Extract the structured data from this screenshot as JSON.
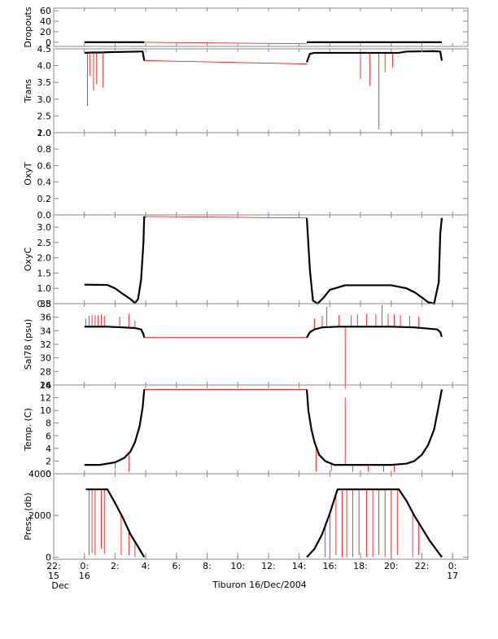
{
  "chart_data": {
    "type": "line",
    "title": "",
    "xlabel": "Tiburon 16/Dec/2004",
    "x_unit": "hours",
    "xlim": [
      -2,
      25
    ],
    "x_ticks": [
      {
        "value": -2,
        "label": "22:",
        "sublabel1": "15",
        "sublabel2": "Dec"
      },
      {
        "value": 0,
        "label": "0:",
        "sublabel1": "16"
      },
      {
        "value": 2,
        "label": "2:"
      },
      {
        "value": 4,
        "label": "4:"
      },
      {
        "value": 6,
        "label": "6:"
      },
      {
        "value": 8,
        "label": "8:"
      },
      {
        "value": 10,
        "label": "10:"
      },
      {
        "value": 12,
        "label": "12:"
      },
      {
        "value": 14,
        "label": "14:"
      },
      {
        "value": 16,
        "label": "16:"
      },
      {
        "value": 18,
        "label": "18:"
      },
      {
        "value": 20,
        "label": "20:"
      },
      {
        "value": 22,
        "label": "22:"
      },
      {
        "value": 24,
        "label": "0:",
        "sublabel1": "17"
      }
    ],
    "series_colors": {
      "data": "#000000",
      "connector": "#ff0000",
      "spike": "#ff0000"
    },
    "panels": [
      {
        "ylabel": "Dropouts",
        "ylim": [
          -8,
          65
        ],
        "yticks": [
          "0",
          "20",
          "40",
          "60"
        ],
        "ytick_values": [
          0,
          20,
          40,
          60
        ],
        "series": [
          {
            "name": "",
            "x": [
              0.0,
              3.9
            ],
            "y": [
              0,
              0
            ]
          },
          {
            "name": "",
            "x": [
              14.5,
              23.3
            ],
            "y": [
              0,
              0
            ]
          }
        ],
        "connectors": [
          {
            "x": [
              3.9,
              14.5
            ],
            "y": [
              0,
              -3
            ]
          }
        ],
        "spikes": []
      },
      {
        "ylabel": "Trans",
        "ylim": [
          2.0,
          4.5
        ],
        "yticks": [
          "2.0",
          "2.5",
          "3.0",
          "3.5",
          "4.0",
          "4.5"
        ],
        "ytick_values": [
          2.0,
          2.5,
          3.0,
          3.5,
          4.0,
          4.5
        ],
        "series": [
          {
            "name": "",
            "x": [
              0.0,
              0.5,
              1.0,
              1.5,
              3.6,
              3.8,
              3.9
            ],
            "y": [
              4.38,
              4.39,
              4.39,
              4.4,
              4.42,
              4.42,
              4.15
            ]
          },
          {
            "name": "",
            "x": [
              14.5,
              14.7,
              15.0,
              20.5,
              21.0,
              22.8,
              23.2,
              23.3
            ],
            "y": [
              4.1,
              4.35,
              4.38,
              4.38,
              4.42,
              4.43,
              4.42,
              4.15
            ]
          }
        ],
        "connectors": [
          {
            "x": [
              3.9,
              14.5
            ],
            "y": [
              4.15,
              4.05
            ]
          }
        ],
        "spikes": [
          {
            "x": 0.2,
            "y": 2.8
          },
          {
            "x": 0.35,
            "y": 3.7
          },
          {
            "x": 0.6,
            "y": 3.25
          },
          {
            "x": 0.8,
            "y": 3.45
          },
          {
            "x": 1.2,
            "y": 3.35
          },
          {
            "x": 18.0,
            "y": 3.6
          },
          {
            "x": 18.6,
            "y": 3.4
          },
          {
            "x": 19.2,
            "y": 2.1
          },
          {
            "x": 19.6,
            "y": 3.8
          },
          {
            "x": 20.1,
            "y": 3.95
          }
        ]
      },
      {
        "ylabel": "OxyT",
        "ylim": [
          0.0,
          1.0
        ],
        "yticks": [
          "0.0",
          "0.2",
          "0.4",
          "0.6",
          "0.8",
          "1.0"
        ],
        "ytick_values": [
          0.0,
          0.2,
          0.4,
          0.6,
          0.8,
          1.0
        ],
        "series": [],
        "connectors": [],
        "spikes": []
      },
      {
        "ylabel": "OxyC",
        "ylim": [
          0.5,
          3.4
        ],
        "yticks": [
          "0.5",
          "1.0",
          "1.5",
          "2.0",
          "2.5",
          "3.0"
        ],
        "ytick_values": [
          0.5,
          1.0,
          1.5,
          2.0,
          2.5,
          3.0
        ],
        "series": [
          {
            "name": "",
            "x": [
              0.0,
              1.5,
              2.0,
              2.5,
              3.0,
              3.3,
              3.5,
              3.7,
              3.85,
              3.9
            ],
            "y": [
              1.12,
              1.11,
              1.0,
              0.82,
              0.65,
              0.52,
              0.65,
              1.3,
              2.5,
              3.35
            ]
          },
          {
            "name": "",
            "x": [
              14.5,
              14.7,
              14.9,
              15.2,
              15.6,
              16.0,
              17.0,
              20.0,
              21.0,
              21.6,
              22.0,
              22.4,
              22.8,
              23.1,
              23.2,
              23.3
            ],
            "y": [
              3.3,
              1.6,
              0.6,
              0.5,
              0.7,
              0.95,
              1.1,
              1.1,
              1.0,
              0.85,
              0.7,
              0.55,
              0.5,
              1.2,
              2.8,
              3.3
            ]
          }
        ],
        "connectors": [
          {
            "x": [
              3.9,
              14.5
            ],
            "y": [
              3.35,
              3.3
            ]
          }
        ],
        "spikes": []
      },
      {
        "ylabel": "Sal78 (psu)",
        "ylim": [
          26,
          38
        ],
        "yticks": [
          "26",
          "28",
          "30",
          "32",
          "34",
          "36",
          "38"
        ],
        "ytick_values": [
          26,
          28,
          30,
          32,
          34,
          36,
          38
        ],
        "series": [
          {
            "name": "",
            "x": [
              0.0,
              1.5,
              2.5,
              3.3,
              3.7,
              3.85,
              3.9
            ],
            "y": [
              34.6,
              34.6,
              34.5,
              34.4,
              34.2,
              33.5,
              33.0
            ]
          },
          {
            "name": "",
            "x": [
              14.5,
              14.7,
              15.0,
              15.5,
              16.5,
              20.0,
              21.5,
              22.5,
              23.0,
              23.2,
              23.3
            ],
            "y": [
              33.0,
              33.8,
              34.2,
              34.5,
              34.6,
              34.6,
              34.5,
              34.3,
              34.2,
              33.8,
              33.1
            ]
          }
        ],
        "connectors": [
          {
            "x": [
              3.9,
              14.5
            ],
            "y": [
              33.0,
              33.0
            ]
          }
        ],
        "spikes": [
          {
            "x": 0.1,
            "y": 35.8
          },
          {
            "x": 0.3,
            "y": 36.2
          },
          {
            "x": 0.5,
            "y": 36.3
          },
          {
            "x": 0.7,
            "y": 36.3
          },
          {
            "x": 0.9,
            "y": 36.3
          },
          {
            "x": 1.1,
            "y": 36.4
          },
          {
            "x": 1.3,
            "y": 36.2
          },
          {
            "x": 2.3,
            "y": 36.1
          },
          {
            "x": 2.9,
            "y": 36.5
          },
          {
            "x": 3.3,
            "y": 35.5
          },
          {
            "x": 15.0,
            "y": 35.8
          },
          {
            "x": 15.5,
            "y": 36.2
          },
          {
            "x": 15.8,
            "y": 37.5
          },
          {
            "x": 16.6,
            "y": 36.3
          },
          {
            "x": 17.0,
            "y": 25.5
          },
          {
            "x": 17.4,
            "y": 36.3
          },
          {
            "x": 17.8,
            "y": 36.4
          },
          {
            "x": 18.4,
            "y": 36.5
          },
          {
            "x": 19.0,
            "y": 36.4
          },
          {
            "x": 19.4,
            "y": 37.8
          },
          {
            "x": 19.8,
            "y": 36.5
          },
          {
            "x": 20.2,
            "y": 36.4
          },
          {
            "x": 20.6,
            "y": 36.3
          },
          {
            "x": 21.2,
            "y": 36.2
          },
          {
            "x": 21.8,
            "y": 36.1
          }
        ]
      },
      {
        "ylabel": "Temp. (C)",
        "ylim": [
          0,
          14
        ],
        "yticks": [
          "0",
          "2",
          "4",
          "6",
          "8",
          "10",
          "12",
          "14"
        ],
        "ytick_values": [
          0,
          2,
          4,
          6,
          8,
          10,
          12,
          14
        ],
        "series": [
          {
            "name": "",
            "x": [
              0.0,
              1.0,
              2.0,
              2.6,
              3.0,
              3.3,
              3.6,
              3.8,
              3.9
            ],
            "y": [
              1.4,
              1.4,
              1.8,
              2.5,
              3.5,
              5.0,
              7.5,
              10.5,
              13.3
            ]
          },
          {
            "name": "",
            "x": [
              14.5,
              14.6,
              14.8,
              15.0,
              15.3,
              15.7,
              16.3,
              20.0,
              21.0,
              21.5,
              22.0,
              22.4,
              22.8,
              23.0,
              23.2,
              23.3
            ],
            "y": [
              13.3,
              10.0,
              7.0,
              5.0,
              3.0,
              2.0,
              1.4,
              1.4,
              1.6,
              2.0,
              3.0,
              4.5,
              7.0,
              9.5,
              12.0,
              13.3
            ]
          }
        ],
        "connectors": [
          {
            "x": [
              3.9,
              14.5
            ],
            "y": [
              13.3,
              13.3
            ]
          }
        ],
        "spikes": [
          {
            "x": 2.0,
            "y": 0.7
          },
          {
            "x": 2.9,
            "y": 0.3
          },
          {
            "x": 15.1,
            "y": 0.3
          },
          {
            "x": 16.1,
            "y": 0.4
          },
          {
            "x": 17.0,
            "y": 12.0
          },
          {
            "x": 17.5,
            "y": 0.3
          },
          {
            "x": 18.5,
            "y": 0.3
          },
          {
            "x": 19.5,
            "y": 0.3
          },
          {
            "x": 20.2,
            "y": 0.3
          }
        ]
      },
      {
        "ylabel": "Press. (db)",
        "ylim": [
          -100,
          4000
        ],
        "yticks": [
          "0",
          "2000",
          "4000"
        ],
        "ytick_values": [
          0,
          2000,
          4000
        ],
        "series": [
          {
            "name": "",
            "x": [
              0.1,
              1.5,
              2.0,
              2.5,
              3.0,
              3.5,
              3.9
            ],
            "y": [
              3250,
              3250,
              2600,
              1900,
              1100,
              500,
              0
            ]
          },
          {
            "name": "",
            "x": [
              14.5,
              15.0,
              15.5,
              16.0,
              16.5,
              20.5,
              21.0,
              21.5,
              22.0,
              22.5,
              23.0,
              23.3
            ],
            "y": [
              0,
              400,
              1100,
              2100,
              3250,
              3250,
              2700,
              2000,
              1400,
              800,
              300,
              0
            ]
          }
        ],
        "connectors": [],
        "spikes": [
          {
            "x": 0.3,
            "y": 100
          },
          {
            "x": 0.5,
            "y": 200
          },
          {
            "x": 0.7,
            "y": 100
          },
          {
            "x": 1.1,
            "y": 400
          },
          {
            "x": 1.3,
            "y": 150
          },
          {
            "x": 2.4,
            "y": 100
          },
          {
            "x": 2.9,
            "y": 100
          },
          {
            "x": 3.3,
            "y": 0
          },
          {
            "x": 15.7,
            "y": 0
          },
          {
            "x": 16.0,
            "y": 0
          },
          {
            "x": 16.4,
            "y": 100
          },
          {
            "x": 16.8,
            "y": 0
          },
          {
            "x": 17.1,
            "y": 0
          },
          {
            "x": 17.5,
            "y": 0
          },
          {
            "x": 17.9,
            "y": 100
          },
          {
            "x": 18.4,
            "y": 0
          },
          {
            "x": 18.8,
            "y": 0
          },
          {
            "x": 19.2,
            "y": 100
          },
          {
            "x": 19.6,
            "y": 0
          },
          {
            "x": 20.0,
            "y": 0
          },
          {
            "x": 20.4,
            "y": 100
          },
          {
            "x": 21.4,
            "y": 0
          },
          {
            "x": 21.8,
            "y": 100
          }
        ]
      }
    ]
  }
}
